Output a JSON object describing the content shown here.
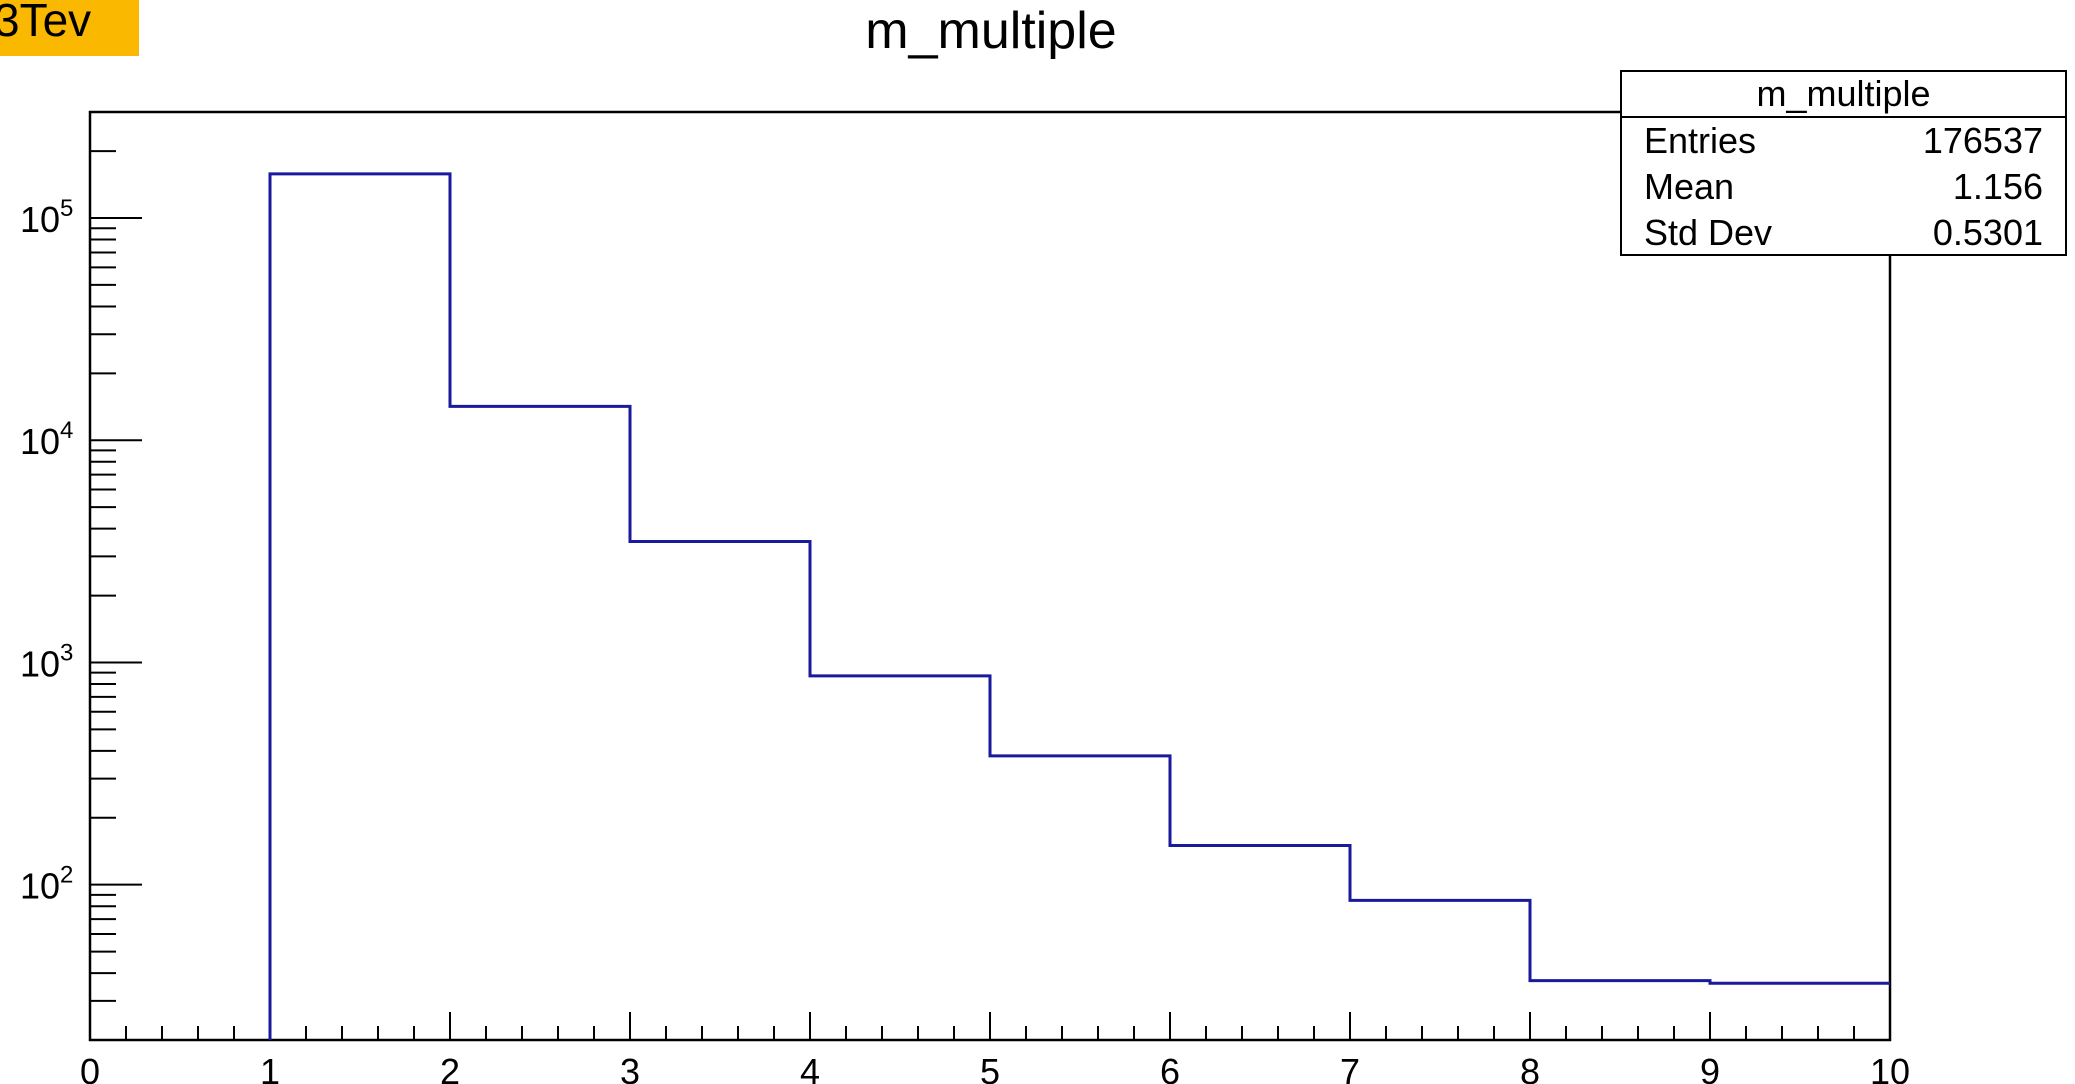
{
  "corner_badge": "3Tev",
  "stats": {
    "title": "m_multiple",
    "rows": [
      {
        "label": "Entries",
        "value": "176537"
      },
      {
        "label": "Mean",
        "value": "1.156"
      },
      {
        "label": "Std Dev",
        "value": "0.5301"
      }
    ]
  },
  "colors": {
    "line": "#1a1a9c",
    "axis": "#000000",
    "badge": "#fbb800"
  },
  "chart_data": {
    "type": "histogram",
    "title": "m_multiple",
    "xlabel": "",
    "ylabel": "",
    "xlim": [
      0,
      10
    ],
    "ylim": [
      20,
      300000
    ],
    "yscale": "log",
    "grid": false,
    "bin_edges": [
      1,
      2,
      3,
      4,
      5,
      6,
      7,
      8,
      9,
      10
    ],
    "values": [
      158000,
      14200,
      3500,
      870,
      380,
      150,
      85,
      37,
      36
    ],
    "x_ticks": [
      "0",
      "1",
      "2",
      "3",
      "4",
      "5",
      "6",
      "7",
      "8",
      "9",
      "10"
    ],
    "y_ticks": [
      {
        "base": "10",
        "exp": "2",
        "value": 100
      },
      {
        "base": "10",
        "exp": "3",
        "value": 1000
      },
      {
        "base": "10",
        "exp": "4",
        "value": 10000
      },
      {
        "base": "10",
        "exp": "5",
        "value": 100000
      }
    ]
  }
}
